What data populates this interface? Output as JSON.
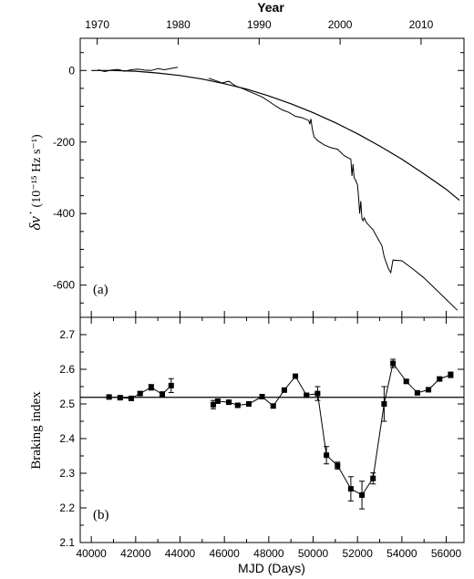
{
  "chart_data": [
    {
      "type": "line",
      "panel_label": "(a)",
      "xlabel_top": "Year",
      "ylabel_main": "δν̇",
      "ylabel_unit": "(10⁻¹⁵ Hz s⁻¹)",
      "xlim": [
        39500,
        56800
      ],
      "ylim": [
        -690,
        90
      ],
      "top_xlim": [
        1967.9,
        2015.3
      ],
      "x_ticks": [
        40000,
        42000,
        44000,
        46000,
        48000,
        50000,
        52000,
        54000,
        56000
      ],
      "y_ticks": [
        0,
        -200,
        -400,
        -600
      ],
      "y_tick_labels": [
        "0",
        "-200",
        "-400",
        "-600"
      ],
      "top_ticks": [
        1970,
        1980,
        1990,
        2000,
        2010
      ],
      "top_tick_labels": [
        "1970",
        "1980",
        "1990",
        "2000",
        "2010"
      ],
      "series": [
        {
          "kind": "observed",
          "x": [
            40300,
            40600,
            40900,
            41200,
            41500,
            41800,
            42100,
            42400,
            42700,
            43000,
            43300,
            43600,
            43900,
            45300,
            45600,
            45900,
            46200,
            46500,
            46800,
            47100,
            47400,
            47700,
            48000,
            48300,
            48600,
            48900,
            49200,
            49500,
            49800,
            49850,
            49900,
            49950,
            50000,
            50050,
            50200,
            50500,
            50800,
            51100,
            51400,
            51700,
            51750,
            51800,
            51850,
            51900,
            52000,
            52050,
            52100,
            52150,
            52200,
            52250,
            52300,
            52400,
            52500,
            52700,
            52900,
            53100,
            53200,
            53300,
            53400,
            53500,
            53600,
            54000,
            54500,
            55000,
            55500,
            56000,
            56500
          ],
          "y": [
            2,
            -3,
            1,
            3,
            -2,
            2,
            4,
            1,
            0,
            5,
            2,
            6,
            9,
            -22,
            -28,
            -35,
            -30,
            -43,
            -50,
            -58,
            -66,
            -74,
            -86,
            -99,
            -110,
            -117,
            -128,
            -132,
            -140,
            -150,
            -135,
            -158,
            -175,
            -186,
            -196,
            -208,
            -216,
            -220,
            -238,
            -248,
            -295,
            -262,
            -300,
            -305,
            -320,
            -355,
            -400,
            -365,
            -415,
            -420,
            -412,
            -425,
            -432,
            -445,
            -468,
            -490,
            -520,
            -538,
            -555,
            -565,
            -530,
            -532,
            -555,
            -580,
            -610,
            -640,
            -670
          ]
        },
        {
          "kind": "model",
          "x": [
            40000,
            41000,
            42000,
            43000,
            44000,
            45000,
            46000,
            47000,
            48000,
            49000,
            50000,
            51000,
            52000,
            53000,
            54000,
            55000,
            56000,
            56600
          ],
          "y": [
            0,
            0,
            -2,
            -7,
            -14,
            -24,
            -37,
            -52,
            -71,
            -93,
            -118,
            -146,
            -177,
            -211,
            -248,
            -289,
            -332,
            -363
          ]
        }
      ]
    },
    {
      "type": "scatter",
      "panel_label": "(b)",
      "xlabel": "MJD  (Days)",
      "ylabel": "Braking index",
      "xlim": [
        39500,
        56800
      ],
      "ylim": [
        2.1,
        2.75
      ],
      "x_ticks": [
        40000,
        42000,
        44000,
        46000,
        48000,
        50000,
        52000,
        54000,
        56000
      ],
      "x_tick_labels": [
        "40000",
        "42000",
        "44000",
        "46000",
        "48000",
        "50000",
        "52000",
        "54000",
        "56000"
      ],
      "y_ticks": [
        2.1,
        2.2,
        2.3,
        2.4,
        2.5,
        2.6,
        2.7
      ],
      "y_tick_labels": [
        "2.1",
        "2.2",
        "2.3",
        "2.4",
        "2.5",
        "2.6",
        "2.7"
      ],
      "reference_value": 2.519,
      "points": [
        {
          "x": 40800,
          "y": 2.52,
          "err": 0.004
        },
        {
          "x": 41300,
          "y": 2.518,
          "err": 0.005
        },
        {
          "x": 41800,
          "y": 2.516,
          "err": 0.004
        },
        {
          "x": 42200,
          "y": 2.53,
          "err": 0.005
        },
        {
          "x": 42700,
          "y": 2.548,
          "err": 0.008
        },
        {
          "x": 43200,
          "y": 2.528,
          "err": 0.007
        },
        {
          "x": 43600,
          "y": 2.553,
          "err": 0.02
        },
        {
          "x": 45500,
          "y": 2.498,
          "err": 0.012
        },
        {
          "x": 45700,
          "y": 2.508,
          "err": 0.005
        },
        {
          "x": 46200,
          "y": 2.505,
          "err": 0.004
        },
        {
          "x": 46600,
          "y": 2.496,
          "err": 0.004
        },
        {
          "x": 47100,
          "y": 2.5,
          "err": 0.004
        },
        {
          "x": 47700,
          "y": 2.521,
          "err": 0.004
        },
        {
          "x": 48200,
          "y": 2.494,
          "err": 0.004
        },
        {
          "x": 48700,
          "y": 2.54,
          "err": 0.004
        },
        {
          "x": 49200,
          "y": 2.58,
          "err": 0.004
        },
        {
          "x": 49700,
          "y": 2.525,
          "err": 0.004
        },
        {
          "x": 50200,
          "y": 2.53,
          "err": 0.02
        },
        {
          "x": 50600,
          "y": 2.352,
          "err": 0.025
        },
        {
          "x": 51100,
          "y": 2.322,
          "err": 0.01
        },
        {
          "x": 51700,
          "y": 2.255,
          "err": 0.035
        },
        {
          "x": 52200,
          "y": 2.237,
          "err": 0.04
        },
        {
          "x": 52700,
          "y": 2.285,
          "err": 0.016
        },
        {
          "x": 53200,
          "y": 2.5,
          "err": 0.05
        },
        {
          "x": 53600,
          "y": 2.617,
          "err": 0.012
        },
        {
          "x": 54200,
          "y": 2.565,
          "err": 0.005
        },
        {
          "x": 54700,
          "y": 2.532,
          "err": 0.005
        },
        {
          "x": 55200,
          "y": 2.541,
          "err": 0.004
        },
        {
          "x": 55700,
          "y": 2.572,
          "err": 0.005
        },
        {
          "x": 56200,
          "y": 2.584,
          "err": 0.008
        }
      ]
    }
  ]
}
